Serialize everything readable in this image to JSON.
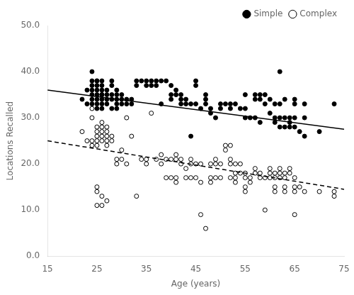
{
  "chart_data": {
    "type": "scatter",
    "xlabel": "Age (years)",
    "ylabel": "Locations Recalled",
    "xlim": [
      15,
      75
    ],
    "ylim": [
      0.0,
      50.0
    ],
    "xticks": [
      15,
      25,
      35,
      45,
      55,
      65,
      75
    ],
    "yticks": [
      {
        "value": 0.0,
        "label": "0.0"
      },
      {
        "value": 10.0,
        "label": "10.0"
      },
      {
        "value": 20.0,
        "label": "20.0"
      },
      {
        "value": 30.0,
        "label": "30.0"
      },
      {
        "value": 40.0,
        "label": "40.0"
      },
      {
        "value": 50.0,
        "label": "50.0"
      }
    ],
    "grid": false,
    "legend": "upper right",
    "series": [
      {
        "name": "Simple",
        "type": "scatter",
        "marker": "filled_circle",
        "color": "black",
        "values": [
          [
            22,
            34
          ],
          [
            23,
            36
          ],
          [
            23,
            33
          ],
          [
            24,
            40
          ],
          [
            24,
            38
          ],
          [
            24,
            37
          ],
          [
            24,
            36
          ],
          [
            24,
            35
          ],
          [
            24,
            34
          ],
          [
            24,
            33
          ],
          [
            25,
            38
          ],
          [
            25,
            38
          ],
          [
            25,
            37
          ],
          [
            25,
            36
          ],
          [
            25,
            35
          ],
          [
            25,
            34
          ],
          [
            25,
            33
          ],
          [
            25,
            32
          ],
          [
            26,
            38
          ],
          [
            26,
            37
          ],
          [
            26,
            36
          ],
          [
            26,
            35
          ],
          [
            26,
            35
          ],
          [
            26,
            34
          ],
          [
            26,
            33
          ],
          [
            26,
            32
          ],
          [
            27,
            36
          ],
          [
            27,
            35
          ],
          [
            27,
            34
          ],
          [
            27,
            33
          ],
          [
            28,
            38
          ],
          [
            28,
            37
          ],
          [
            28,
            35
          ],
          [
            28,
            34
          ],
          [
            28,
            32
          ],
          [
            29,
            36
          ],
          [
            29,
            35
          ],
          [
            29,
            34
          ],
          [
            29,
            33
          ],
          [
            29,
            32
          ],
          [
            30,
            35
          ],
          [
            30,
            34
          ],
          [
            30,
            33
          ],
          [
            31,
            34
          ],
          [
            31,
            33
          ],
          [
            32,
            34
          ],
          [
            32,
            33
          ],
          [
            33,
            38
          ],
          [
            33,
            37
          ],
          [
            34,
            38
          ],
          [
            35,
            38
          ],
          [
            35,
            37
          ],
          [
            36,
            38
          ],
          [
            36,
            37
          ],
          [
            37,
            38
          ],
          [
            37,
            37
          ],
          [
            38,
            38
          ],
          [
            38,
            33
          ],
          [
            39,
            38
          ],
          [
            40,
            37
          ],
          [
            40,
            35
          ],
          [
            40,
            34
          ],
          [
            41,
            36
          ],
          [
            41,
            35
          ],
          [
            42,
            35
          ],
          [
            42,
            34
          ],
          [
            42,
            33
          ],
          [
            43,
            34
          ],
          [
            43,
            33
          ],
          [
            44,
            33
          ],
          [
            44,
            26
          ],
          [
            45,
            38
          ],
          [
            45,
            37
          ],
          [
            45,
            33
          ],
          [
            46,
            32
          ],
          [
            47,
            35
          ],
          [
            47,
            34
          ],
          [
            47,
            33
          ],
          [
            48,
            32
          ],
          [
            48,
            31
          ],
          [
            49,
            30
          ],
          [
            50,
            33
          ],
          [
            50,
            32
          ],
          [
            51,
            33
          ],
          [
            52,
            33
          ],
          [
            52,
            32
          ],
          [
            53,
            33
          ],
          [
            54,
            32
          ],
          [
            55,
            35
          ],
          [
            55,
            32
          ],
          [
            55,
            30
          ],
          [
            56,
            30
          ],
          [
            57,
            35
          ],
          [
            57,
            34
          ],
          [
            57,
            30
          ],
          [
            58,
            35
          ],
          [
            58,
            34
          ],
          [
            58,
            29
          ],
          [
            59,
            35
          ],
          [
            59,
            33
          ],
          [
            60,
            34
          ],
          [
            60,
            31
          ],
          [
            61,
            33
          ],
          [
            61,
            30
          ],
          [
            61,
            29
          ],
          [
            62,
            40
          ],
          [
            62,
            33
          ],
          [
            62,
            30
          ],
          [
            62,
            28
          ],
          [
            63,
            34
          ],
          [
            63,
            30
          ],
          [
            63,
            28
          ],
          [
            64,
            30
          ],
          [
            64,
            29
          ],
          [
            64,
            28
          ],
          [
            65,
            34
          ],
          [
            65,
            33
          ],
          [
            65,
            30
          ],
          [
            65,
            28
          ],
          [
            66,
            27
          ],
          [
            67,
            33
          ],
          [
            67,
            30
          ],
          [
            67,
            26
          ],
          [
            70,
            27
          ],
          [
            73,
            33
          ]
        ]
      },
      {
        "name": "Complex",
        "type": "scatter",
        "marker": "open_circle",
        "color": "black",
        "values": [
          [
            22,
            27
          ],
          [
            23,
            25
          ],
          [
            24,
            32
          ],
          [
            24,
            30
          ],
          [
            24,
            25
          ],
          [
            24,
            24
          ],
          [
            25,
            28
          ],
          [
            25,
            27
          ],
          [
            25,
            26
          ],
          [
            25,
            25
          ],
          [
            25,
            24
          ],
          [
            25,
            15
          ],
          [
            25,
            14
          ],
          [
            25,
            11
          ],
          [
            26,
            29
          ],
          [
            26,
            28
          ],
          [
            26,
            27
          ],
          [
            26,
            26
          ],
          [
            26,
            25
          ],
          [
            26,
            13
          ],
          [
            26,
            11
          ],
          [
            27,
            28
          ],
          [
            27,
            27
          ],
          [
            27,
            26
          ],
          [
            27,
            25
          ],
          [
            27,
            24
          ],
          [
            27,
            12
          ],
          [
            28,
            26
          ],
          [
            28,
            25
          ],
          [
            29,
            21
          ],
          [
            29,
            20
          ],
          [
            30,
            23
          ],
          [
            30,
            21
          ],
          [
            31,
            30
          ],
          [
            31,
            20
          ],
          [
            32,
            26
          ],
          [
            33,
            13
          ],
          [
            34,
            21
          ],
          [
            35,
            21
          ],
          [
            35,
            20
          ],
          [
            36,
            31
          ],
          [
            37,
            21
          ],
          [
            38,
            22
          ],
          [
            38,
            20
          ],
          [
            39,
            21
          ],
          [
            39,
            17
          ],
          [
            40,
            21
          ],
          [
            40,
            17
          ],
          [
            41,
            22
          ],
          [
            41,
            21
          ],
          [
            41,
            17
          ],
          [
            41,
            16
          ],
          [
            42,
            21
          ],
          [
            42,
            20
          ],
          [
            43,
            19
          ],
          [
            43,
            17
          ],
          [
            44,
            21
          ],
          [
            44,
            20
          ],
          [
            44,
            17
          ],
          [
            45,
            20
          ],
          [
            45,
            17
          ],
          [
            46,
            20
          ],
          [
            46,
            16
          ],
          [
            46,
            9
          ],
          [
            47,
            6
          ],
          [
            48,
            20
          ],
          [
            48,
            17
          ],
          [
            48,
            16
          ],
          [
            49,
            21
          ],
          [
            49,
            20
          ],
          [
            49,
            17
          ],
          [
            50,
            20
          ],
          [
            50,
            17
          ],
          [
            51,
            24
          ],
          [
            51,
            23
          ],
          [
            52,
            24
          ],
          [
            52,
            21
          ],
          [
            52,
            20
          ],
          [
            52,
            17
          ],
          [
            53,
            20
          ],
          [
            53,
            18
          ],
          [
            53,
            17
          ],
          [
            53,
            16
          ],
          [
            54,
            20
          ],
          [
            54,
            18
          ],
          [
            55,
            18
          ],
          [
            55,
            17
          ],
          [
            55,
            15
          ],
          [
            55,
            14
          ],
          [
            56,
            17
          ],
          [
            56,
            16
          ],
          [
            57,
            19
          ],
          [
            57,
            18
          ],
          [
            58,
            18
          ],
          [
            58,
            17
          ],
          [
            59,
            17
          ],
          [
            59,
            10
          ],
          [
            60,
            19
          ],
          [
            60,
            18
          ],
          [
            60,
            17
          ],
          [
            61,
            18
          ],
          [
            61,
            17
          ],
          [
            61,
            15
          ],
          [
            61,
            14
          ],
          [
            62,
            19
          ],
          [
            62,
            18
          ],
          [
            62,
            17
          ],
          [
            63,
            18
          ],
          [
            63,
            17
          ],
          [
            63,
            15
          ],
          [
            63,
            14
          ],
          [
            64,
            19
          ],
          [
            64,
            18
          ],
          [
            65,
            17
          ],
          [
            65,
            15
          ],
          [
            65,
            14
          ],
          [
            65,
            9
          ],
          [
            66,
            15
          ],
          [
            67,
            14
          ],
          [
            70,
            14
          ],
          [
            73,
            14
          ],
          [
            73,
            13
          ]
        ]
      },
      {
        "type": "line",
        "line_style": "solid",
        "color": "black",
        "values": [
          [
            15,
            36.0
          ],
          [
            75,
            27.5
          ]
        ]
      },
      {
        "type": "line",
        "line_style": "dashed",
        "color": "black",
        "values": [
          [
            15,
            25.0
          ],
          [
            75,
            14.5
          ]
        ]
      }
    ]
  }
}
